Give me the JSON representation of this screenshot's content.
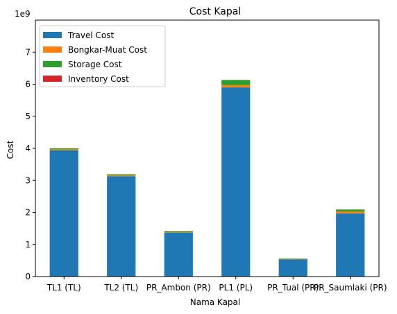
{
  "chart_data": {
    "type": "bar",
    "stacked": true,
    "title": "Cost Kapal",
    "xlabel": "Nama Kapal",
    "ylabel": "Cost",
    "scale_label": "1e9",
    "categories": [
      "TL1 (TL)",
      "TL2 (TL)",
      "PR_Ambon (PR)",
      "PL1 (PL)",
      "PR_Tual (PR)",
      "PR_Saumlaki (PR)"
    ],
    "ylim": [
      0,
      8
    ],
    "yticks": [
      0,
      1,
      2,
      3,
      4,
      5,
      6,
      7
    ],
    "grid": false,
    "legend_position": "top-left",
    "series": [
      {
        "name": "Travel Cost",
        "color": "#1f77b4",
        "values": [
          3.94,
          3.13,
          1.37,
          5.9,
          0.53,
          1.97
        ]
      },
      {
        "name": "Bongkar-Muat Cost",
        "color": "#ff7f0e",
        "values": [
          0.03,
          0.03,
          0.02,
          0.07,
          0.01,
          0.06
        ]
      },
      {
        "name": "Storage Cost",
        "color": "#2ca02c",
        "values": [
          0.03,
          0.03,
          0.03,
          0.16,
          0.02,
          0.06
        ]
      },
      {
        "name": "Inventory Cost",
        "color": "#d62728",
        "values": [
          0.002,
          0.002,
          0.002,
          0.004,
          0.001,
          0.003
        ]
      }
    ]
  }
}
